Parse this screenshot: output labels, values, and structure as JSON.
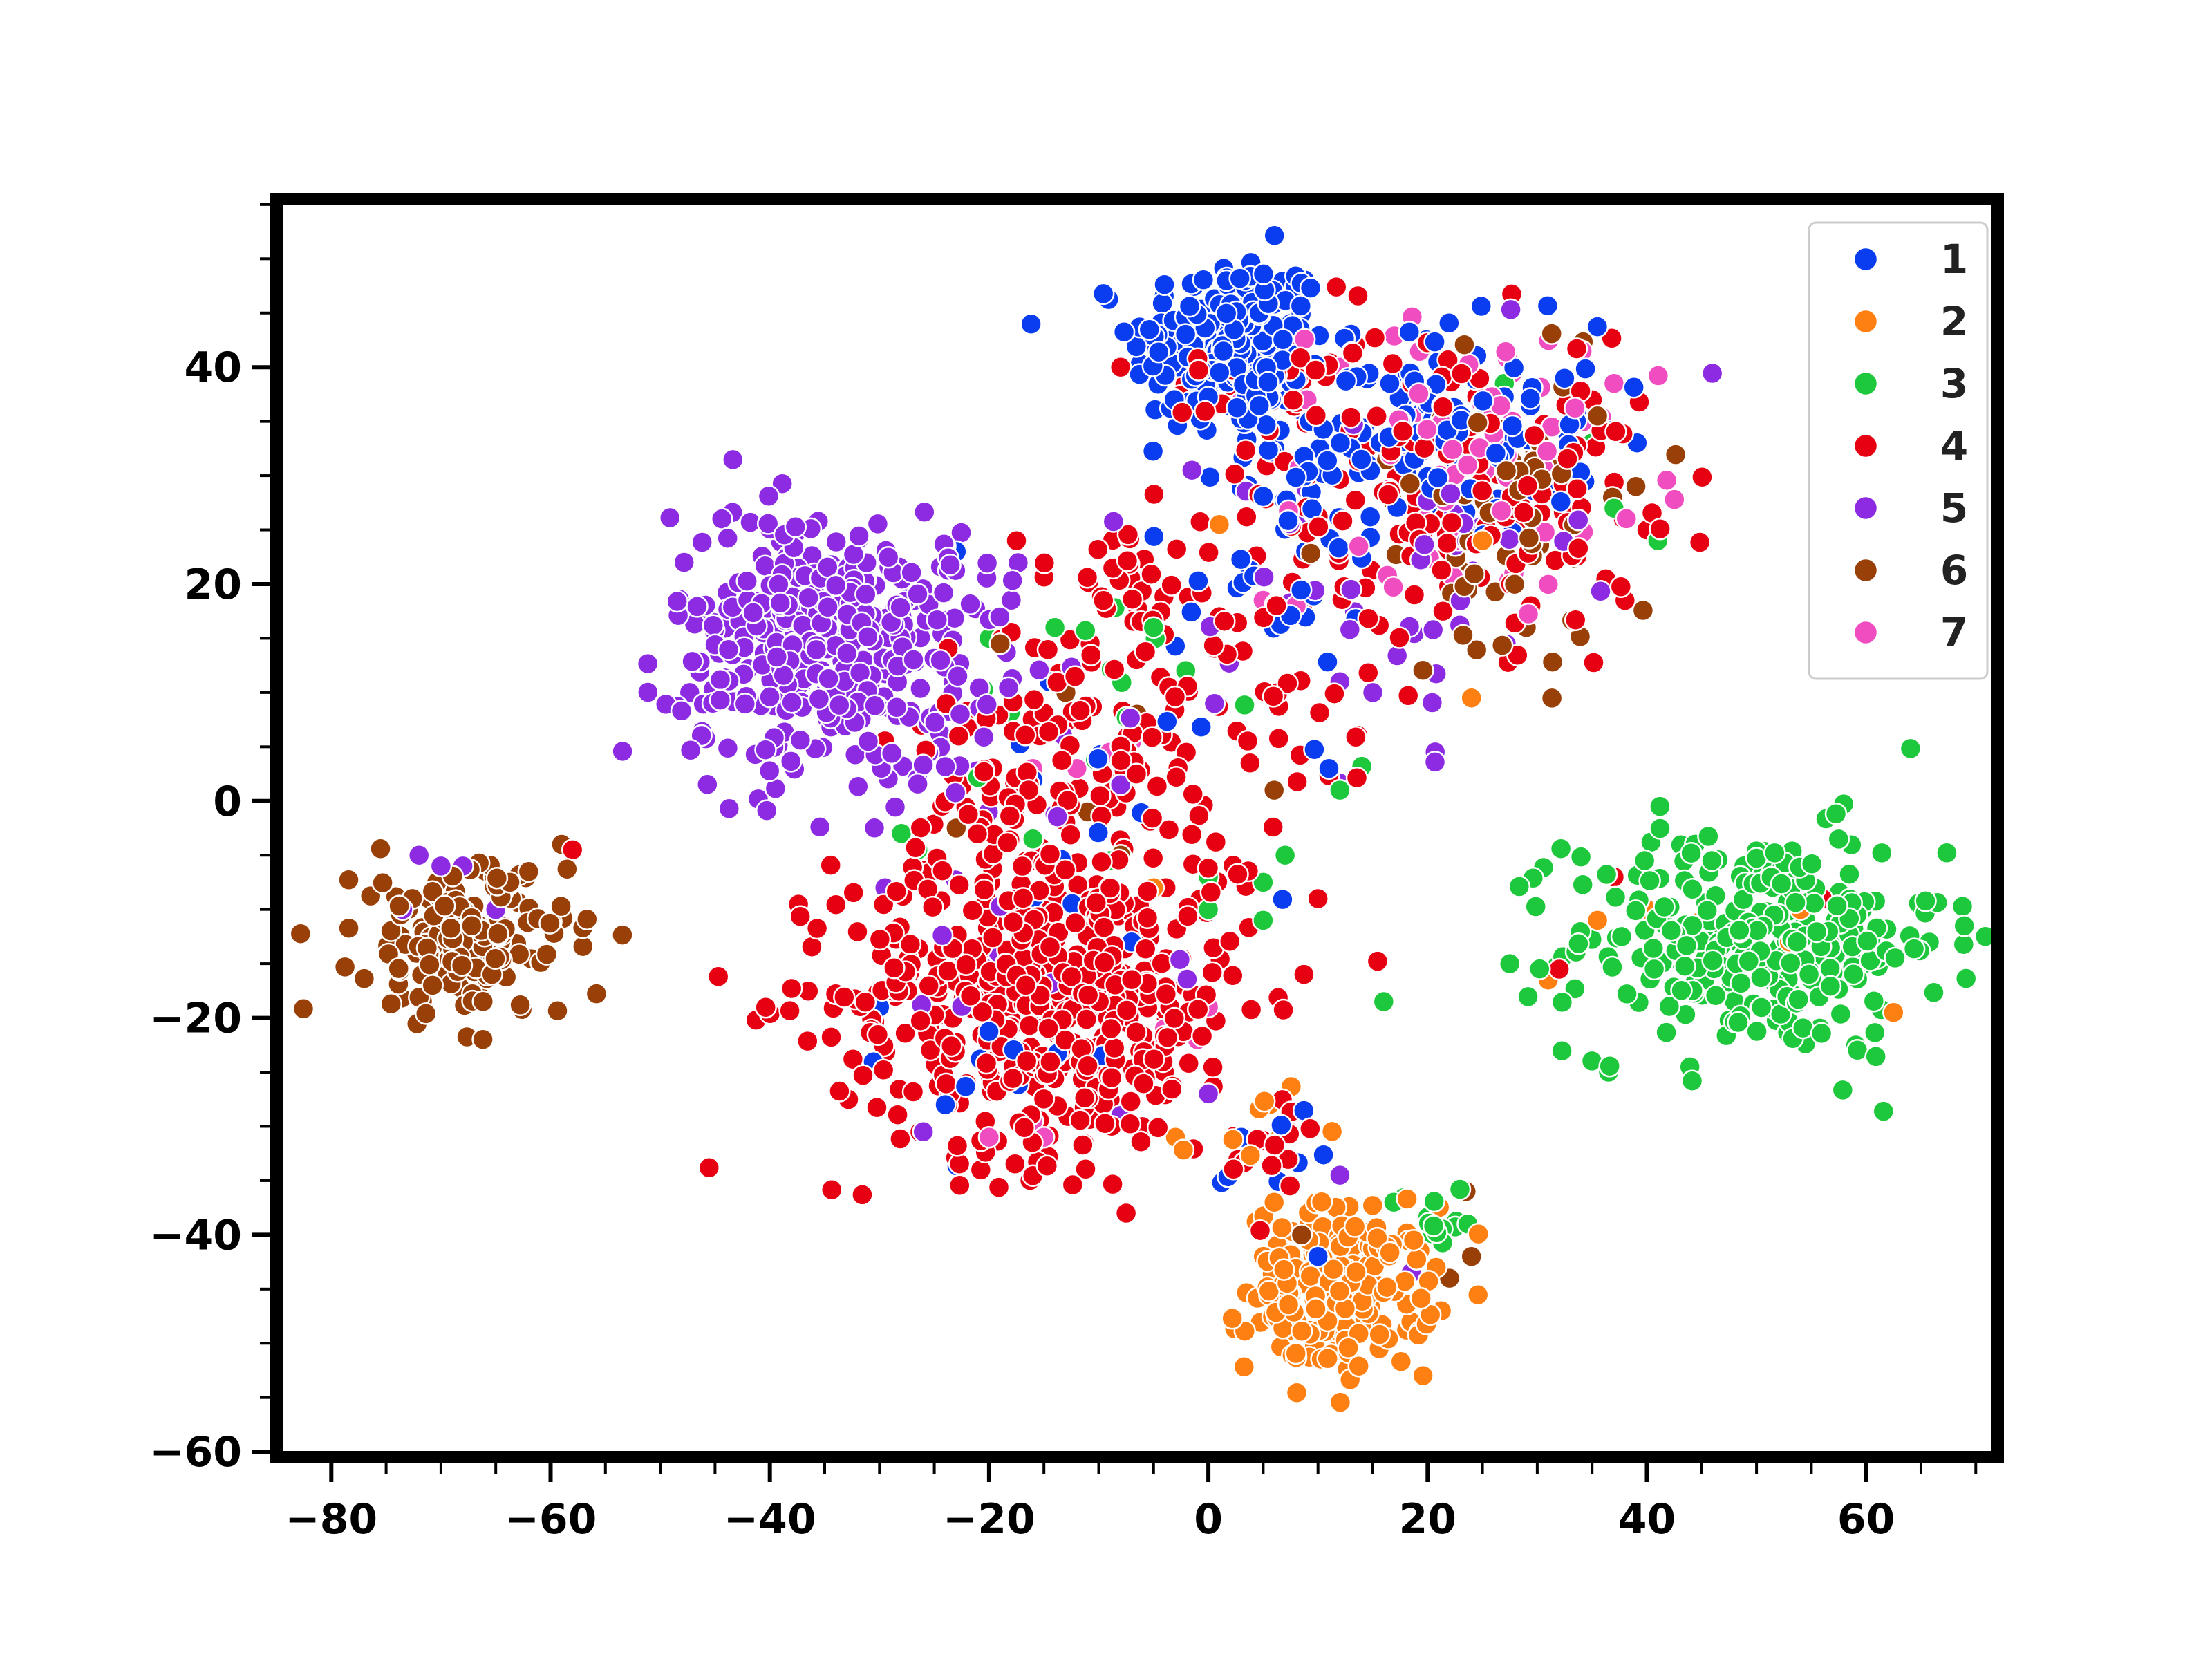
{
  "chart_data": {
    "type": "scatter",
    "title": "",
    "xlabel": "",
    "ylabel": "",
    "xlim": [
      -85,
      72
    ],
    "ylim": [
      -60.5,
      55.5
    ],
    "x_ticks": [
      -80,
      -60,
      -40,
      -20,
      0,
      20,
      40,
      60
    ],
    "y_ticks": [
      -60,
      -40,
      -20,
      0,
      20,
      40
    ],
    "x_tick_labels": [
      "−80",
      "−60",
      "−40",
      "−20",
      "0",
      "20",
      "40",
      "60"
    ],
    "y_tick_labels": [
      "−60",
      "−40",
      "−20",
      "0",
      "20",
      "40"
    ],
    "grid": false,
    "legend_position": "top-right",
    "series": [
      {
        "name": "1",
        "color": "#0a3cf0",
        "clusters": [
          {
            "cx": 2,
            "cy": 42,
            "sx": 4.5,
            "sy": 4.2,
            "n": 230
          },
          {
            "cx": 20,
            "cy": 34,
            "sx": 8,
            "sy": 5,
            "n": 140
          },
          {
            "cx": 6,
            "cy": 22,
            "sx": 4,
            "sy": 6,
            "n": 30
          },
          {
            "cx": -10,
            "cy": 0,
            "sx": 6,
            "sy": 8,
            "n": 15
          },
          {
            "cx": -18,
            "cy": -22,
            "sx": 6,
            "sy": 5,
            "n": 10
          },
          {
            "cx": 8,
            "cy": -34,
            "sx": 3,
            "sy": 3,
            "n": 8
          }
        ],
        "points": [
          [
            -23,
            23
          ],
          [
            -7,
            -13
          ],
          [
            -30,
            -19
          ],
          [
            -24,
            -28
          ],
          [
            3,
            -31
          ],
          [
            11,
            3
          ],
          [
            10,
            -42
          ],
          [
            -13,
            10
          ]
        ]
      },
      {
        "name": "2",
        "color": "#ff8012",
        "clusters": [
          {
            "cx": 12,
            "cy": -45,
            "sx": 4.2,
            "sy": 3.8,
            "n": 200
          },
          {
            "cx": 4,
            "cy": -30,
            "sx": 2.5,
            "sy": 2.5,
            "n": 10
          }
        ],
        "points": [
          [
            1,
            25.5
          ],
          [
            -5,
            -8
          ],
          [
            -3,
            -31
          ],
          [
            24,
            9.5
          ],
          [
            25,
            24
          ],
          [
            31,
            -16.5
          ],
          [
            35.5,
            -11
          ],
          [
            40,
            -10
          ],
          [
            45,
            -11
          ],
          [
            54,
            -10
          ],
          [
            62.5,
            -19.5
          ],
          [
            53,
            -13
          ],
          [
            -15,
            8
          ],
          [
            6,
            -37
          ]
        ]
      },
      {
        "name": "3",
        "color": "#1ec83c",
        "clusters": [
          {
            "cx": 50,
            "cy": -13,
            "sx": 8.5,
            "sy": 5.2,
            "n": 290
          },
          {
            "cx": 21,
            "cy": -38,
            "sx": 2.5,
            "sy": 1.6,
            "n": 14
          },
          {
            "cx": -10,
            "cy": 10,
            "sx": 6,
            "sy": 5,
            "n": 12
          }
        ],
        "points": [
          [
            27.5,
            -15
          ],
          [
            36.5,
            -25
          ],
          [
            16,
            -18.5
          ],
          [
            14,
            3.2
          ],
          [
            12,
            1
          ],
          [
            7,
            -5
          ],
          [
            5,
            -7.5
          ],
          [
            5,
            -11
          ],
          [
            0,
            -10
          ],
          [
            -26.5,
            -4.5
          ],
          [
            -16,
            -3.5
          ],
          [
            -9,
            -5.5
          ],
          [
            37,
            27
          ],
          [
            41,
            24
          ],
          [
            27,
            38.5
          ],
          [
            35,
            33
          ],
          [
            -20,
            15
          ],
          [
            -5,
            16
          ],
          [
            -14,
            16
          ],
          [
            -28,
            -3
          ],
          [
            0,
            -7
          ]
        ]
      },
      {
        "name": "4",
        "color": "#e60012",
        "clusters": [
          {
            "cx": -15,
            "cy": -18,
            "sx": 9.5,
            "sy": 7.5,
            "n": 520
          },
          {
            "cx": -12,
            "cy": 3,
            "sx": 8,
            "sy": 8,
            "n": 140
          },
          {
            "cx": 22,
            "cy": 30,
            "sx": 9,
            "sy": 7,
            "n": 160
          },
          {
            "cx": 5,
            "cy": 14,
            "sx": 6,
            "sy": 7,
            "n": 45
          },
          {
            "cx": -7,
            "cy": 20,
            "sx": 4,
            "sy": 3,
            "n": 22
          },
          {
            "cx": 6,
            "cy": -32,
            "sx": 3,
            "sy": 3,
            "n": 14
          },
          {
            "cx": 4,
            "cy": 38,
            "sx": 4,
            "sy": 3,
            "n": 25
          }
        ],
        "points": [
          [
            -58,
            -4.5
          ],
          [
            -8,
            40
          ],
          [
            -17.5,
            24
          ],
          [
            -24,
            23.5
          ],
          [
            38,
            18.5
          ],
          [
            40,
            25
          ],
          [
            37,
            -7
          ],
          [
            32,
            -15.5
          ],
          [
            56,
            -9
          ],
          [
            10,
            -9
          ],
          [
            1,
            17
          ]
        ]
      },
      {
        "name": "5",
        "color": "#8c2be2",
        "clusters": [
          {
            "cx": -36,
            "cy": 15,
            "sx": 6.5,
            "sy": 6,
            "n": 330
          },
          {
            "cx": -25,
            "cy": 12,
            "sx": 4.5,
            "sy": 7,
            "n": 70
          },
          {
            "cx": 17,
            "cy": 22,
            "sx": 8,
            "sy": 8,
            "n": 45
          },
          {
            "cx": -18,
            "cy": -10,
            "sx": 8,
            "sy": 8,
            "n": 18
          }
        ],
        "points": [
          [
            -72,
            -5
          ],
          [
            -70,
            -6
          ],
          [
            -73.5,
            -10
          ],
          [
            -68,
            -6
          ],
          [
            -65,
            -10
          ],
          [
            -29.5,
            -8
          ],
          [
            -26,
            -30.5
          ],
          [
            7,
            39
          ],
          [
            -1.5,
            30.5
          ],
          [
            12,
            -34.5
          ],
          [
            18.5,
            -43.5
          ],
          [
            -8,
            -29
          ],
          [
            0,
            -27
          ],
          [
            12,
            11
          ],
          [
            15,
            10
          ],
          [
            -8,
            1.5
          ]
        ]
      },
      {
        "name": "6",
        "color": "#994009",
        "clusters": [
          {
            "cx": -68,
            "cy": -13,
            "sx": 4.8,
            "sy": 3.6,
            "n": 170
          },
          {
            "cx": 27,
            "cy": 26,
            "sx": 7,
            "sy": 8,
            "n": 60
          }
        ],
        "points": [
          [
            -59,
            -4
          ],
          [
            -62,
            -6.5
          ],
          [
            23.5,
            -36
          ],
          [
            22,
            -44
          ],
          [
            24,
            -42
          ],
          [
            8.5,
            -40
          ],
          [
            -6.5,
            8
          ],
          [
            -8,
            -5
          ],
          [
            -11,
            -1
          ],
          [
            -23,
            -2.5
          ],
          [
            -17,
            -8
          ],
          [
            -19,
            14.5
          ],
          [
            -13,
            10
          ],
          [
            6,
            1
          ],
          [
            35.5,
            35.5
          ],
          [
            39,
            29
          ],
          [
            29,
            16
          ]
        ]
      },
      {
        "name": "7",
        "color": "#f04dc0",
        "clusters": [
          {
            "cx": 25,
            "cy": 32,
            "sx": 8,
            "sy": 6,
            "n": 75
          }
        ],
        "points": [
          [
            -20,
            -31
          ],
          [
            -15,
            -31
          ],
          [
            -16,
            -29.5
          ],
          [
            -4,
            -21
          ],
          [
            0,
            -19
          ],
          [
            -1,
            -22
          ],
          [
            -12,
            -17.5
          ],
          [
            -7,
            5.5
          ],
          [
            -9,
            4.5
          ],
          [
            -16,
            3
          ],
          [
            -12,
            3
          ],
          [
            9,
            37
          ],
          [
            5,
            18.5
          ],
          [
            8,
            18
          ],
          [
            12,
            40
          ],
          [
            30,
            34
          ],
          [
            33,
            32
          ],
          [
            37,
            38.5
          ]
        ]
      }
    ]
  }
}
